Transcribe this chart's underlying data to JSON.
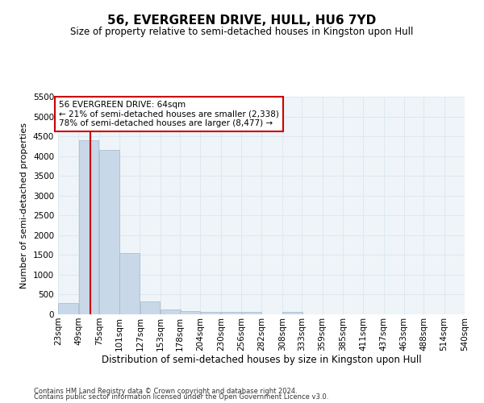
{
  "title": "56, EVERGREEN DRIVE, HULL, HU6 7YD",
  "subtitle": "Size of property relative to semi-detached houses in Kingston upon Hull",
  "xlabel": "Distribution of semi-detached houses by size in Kingston upon Hull",
  "ylabel": "Number of semi-detached properties",
  "footer1": "Contains HM Land Registry data © Crown copyright and database right 2024.",
  "footer2": "Contains public sector information licensed under the Open Government Licence v3.0.",
  "bar_edges": [
    23,
    49,
    75,
    101,
    127,
    153,
    178,
    204,
    230,
    256,
    282,
    308,
    333,
    359,
    385,
    411,
    437,
    463,
    488,
    514,
    540
  ],
  "bar_values": [
    280,
    4400,
    4150,
    1550,
    320,
    115,
    75,
    60,
    55,
    55,
    0,
    60,
    0,
    0,
    0,
    0,
    0,
    0,
    0,
    0
  ],
  "bar_color": "#c8d8e8",
  "bar_edge_color": "#a0b8cc",
  "property_line_x": 64,
  "property_line_color": "#cc0000",
  "annotation_text": "56 EVERGREEN DRIVE: 64sqm\n← 21% of semi-detached houses are smaller (2,338)\n78% of semi-detached houses are larger (8,477) →",
  "annotation_box_color": "#cc0000",
  "ylim": [
    0,
    5500
  ],
  "yticks": [
    0,
    500,
    1000,
    1500,
    2000,
    2500,
    3000,
    3500,
    4000,
    4500,
    5000,
    5500
  ],
  "grid_color": "#dde8f0",
  "bg_color": "#eef4f8",
  "title_fontsize": 11,
  "subtitle_fontsize": 8.5,
  "xlabel_fontsize": 8.5,
  "ylabel_fontsize": 8,
  "tick_fontsize": 7.5,
  "footer_fontsize": 6,
  "annotation_fontsize": 7.5
}
